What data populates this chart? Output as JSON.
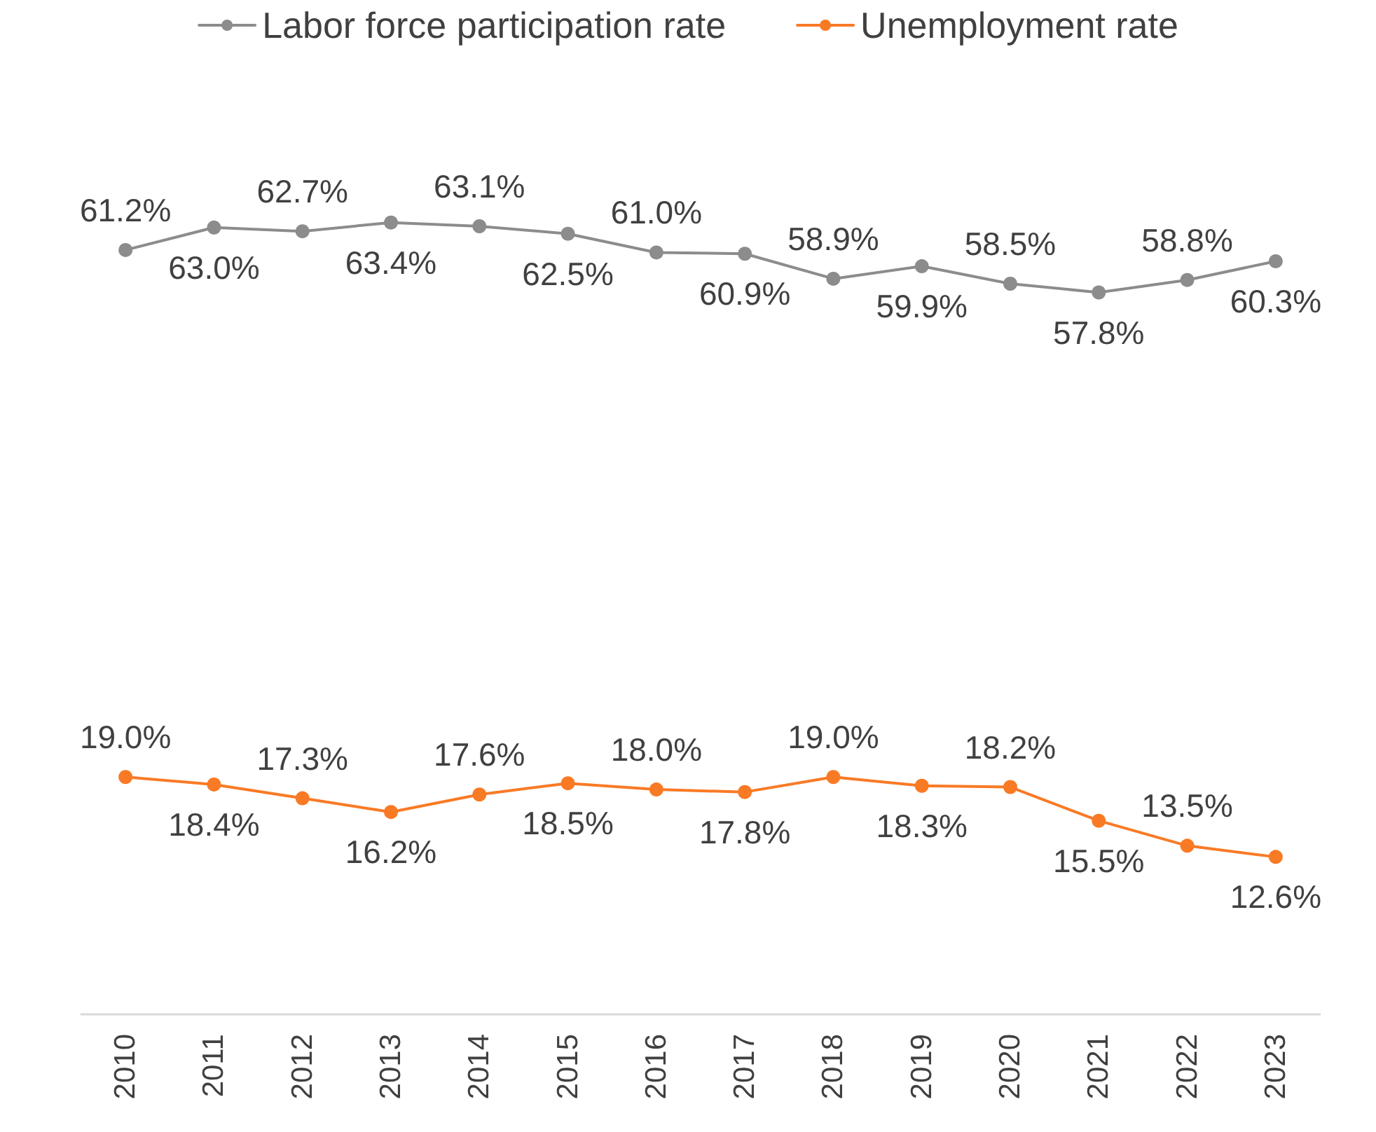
{
  "chart_data": {
    "type": "line",
    "categories": [
      "2010",
      "2011",
      "2012",
      "2013",
      "2014",
      "2015",
      "2016",
      "2017",
      "2018",
      "2019",
      "2020",
      "2021",
      "2022",
      "2023"
    ],
    "series": [
      {
        "name": "Labor force participation rate",
        "color": "#8c8c8c",
        "values": [
          61.2,
          63.0,
          62.7,
          63.4,
          63.1,
          62.5,
          61.0,
          60.9,
          58.9,
          59.9,
          58.5,
          57.8,
          58.8,
          60.3
        ],
        "value_labels": [
          "61.2%",
          "63.0%",
          "62.7%",
          "63.4%",
          "63.1%",
          "62.5%",
          "61.0%",
          "60.9%",
          "58.9%",
          "59.9%",
          "58.5%",
          "57.8%",
          "58.8%",
          "60.3%"
        ]
      },
      {
        "name": "Unemployment rate",
        "color": "#f97a25",
        "values": [
          19.0,
          18.4,
          17.3,
          16.2,
          17.6,
          18.5,
          18.0,
          17.8,
          19.0,
          18.3,
          18.2,
          15.5,
          13.5,
          12.6
        ],
        "value_labels": [
          "19.0%",
          "18.4%",
          "17.3%",
          "16.2%",
          "17.6%",
          "18.5%",
          "18.0%",
          "17.8%",
          "19.0%",
          "18.3%",
          "18.2%",
          "15.5%",
          "13.5%",
          "12.6%"
        ]
      }
    ],
    "legend": "top",
    "marker": "circle",
    "line_style": "solid",
    "grid": false,
    "tick_labels": "x"
  }
}
